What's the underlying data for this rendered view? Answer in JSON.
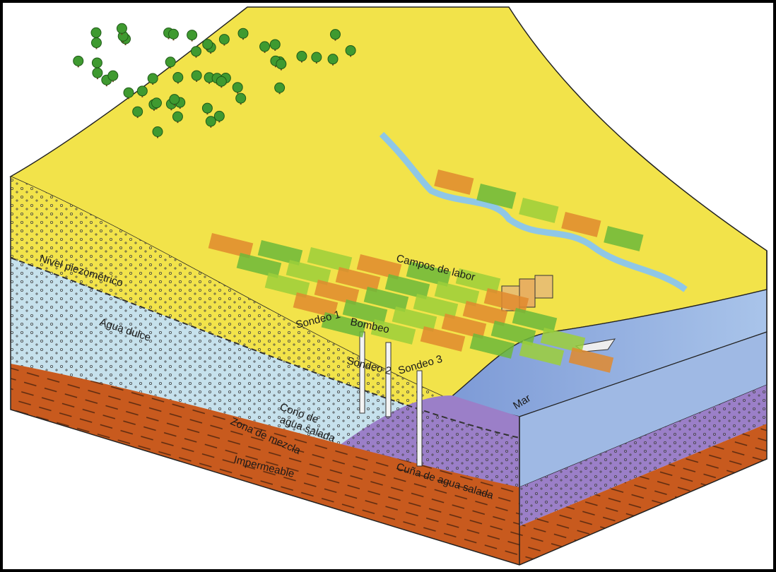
{
  "labels": [
    "Campos de labor",
    "Nivel piezométrico",
    "Agua dulce",
    "Bombeo",
    "Sondeo 1",
    "Sondeo 2",
    "Sondeo 3",
    "Cono de",
    "agua salada",
    "Zona de mezcla",
    "Impermeable",
    "Cuña de agua salada",
    "Mar"
  ]
}
